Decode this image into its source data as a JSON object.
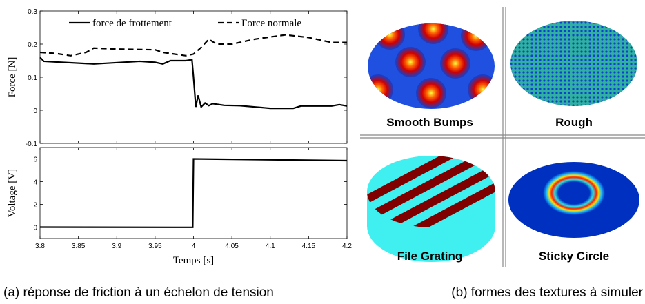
{
  "chart_data": [
    {
      "type": "line",
      "ylabel": "Force [N]",
      "legend": "upper center",
      "xlim": [
        3.8,
        4.2
      ],
      "ylim": [
        -0.1,
        0.3
      ],
      "yticks": [
        -0.1,
        0,
        0.1,
        0.2,
        0.3
      ],
      "series": [
        {
          "name": "force de frottement",
          "color": "#000000",
          "line_style": "solid",
          "x": [
            3.8,
            3.805,
            3.87,
            3.93,
            3.95,
            3.96,
            3.97,
            3.99,
            3.998,
            4.0,
            4.003,
            4.006,
            4.01,
            4.015,
            4.02,
            4.025,
            4.04,
            4.06,
            4.08,
            4.1,
            4.13,
            4.14,
            4.18,
            4.19,
            4.2
          ],
          "values": [
            0.16,
            0.148,
            0.14,
            0.148,
            0.145,
            0.14,
            0.15,
            0.15,
            0.153,
            0.1,
            0.01,
            0.045,
            0.01,
            0.022,
            0.014,
            0.02,
            0.015,
            0.014,
            0.01,
            0.006,
            0.006,
            0.013,
            0.013,
            0.017,
            0.013
          ]
        },
        {
          "name": "Force normale",
          "color": "#000000",
          "line_style": "dashed",
          "x": [
            3.8,
            3.82,
            3.84,
            3.86,
            3.87,
            3.9,
            3.95,
            3.96,
            3.99,
            4.0,
            4.01,
            4.02,
            4.03,
            4.05,
            4.08,
            4.12,
            4.15,
            4.18,
            4.2
          ],
          "values": [
            0.175,
            0.172,
            0.165,
            0.175,
            0.188,
            0.185,
            0.183,
            0.175,
            0.165,
            0.17,
            0.19,
            0.215,
            0.2,
            0.2,
            0.215,
            0.228,
            0.22,
            0.205,
            0.205
          ]
        }
      ]
    },
    {
      "type": "line",
      "ylabel": "Voltage [V]",
      "xlabel": "Temps [s]",
      "xlim": [
        3.8,
        4.2
      ],
      "xticks": [
        3.8,
        3.85,
        3.9,
        3.95,
        4,
        4.05,
        4.1,
        4.15,
        4.2
      ],
      "ylim": [
        -1,
        7
      ],
      "yticks": [
        0,
        2,
        4,
        6
      ],
      "series": [
        {
          "color": "#000000",
          "line_style": "solid",
          "x": [
            3.8,
            3.999,
            4.0,
            4.2
          ],
          "values": [
            0,
            -0.02,
            6,
            5.85
          ]
        }
      ]
    }
  ],
  "textures": [
    "Smooth Bumps",
    "Rough",
    "File Grating",
    "Sticky Circle"
  ],
  "captions": [
    "(a) réponse de friction à un échelon de tension",
    "(b) formes des textures à simuler"
  ]
}
